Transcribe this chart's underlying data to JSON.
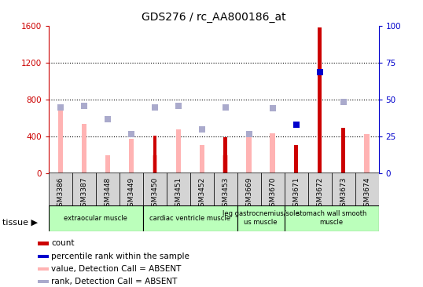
{
  "title": "GDS276 / rc_AA800186_at",
  "samples": [
    "GSM3386",
    "GSM3387",
    "GSM3448",
    "GSM3449",
    "GSM3450",
    "GSM3451",
    "GSM3452",
    "GSM3453",
    "GSM3669",
    "GSM3670",
    "GSM3671",
    "GSM3672",
    "GSM3673",
    "GSM3674"
  ],
  "count_values": [
    0,
    0,
    0,
    0,
    410,
    0,
    0,
    390,
    0,
    0,
    310,
    1580,
    500,
    0
  ],
  "percentile_rank_scaled": [
    0,
    0,
    0,
    0,
    0,
    0,
    0,
    0,
    0,
    0,
    530,
    1100,
    0,
    0
  ],
  "absent_value": [
    680,
    540,
    200,
    380,
    200,
    480,
    310,
    200,
    430,
    440,
    0,
    0,
    0,
    430
  ],
  "absent_rank": [
    720,
    730,
    590,
    430,
    720,
    730,
    480,
    720,
    430,
    710,
    0,
    0,
    780,
    0
  ],
  "count_color": "#cc0000",
  "percentile_color": "#0000cc",
  "absent_value_color": "#ffb3b3",
  "absent_rank_color": "#aaaacc",
  "ylim_left": [
    0,
    1600
  ],
  "ylim_right": [
    0,
    100
  ],
  "yticks_left": [
    0,
    400,
    800,
    1200,
    1600
  ],
  "yticks_right": [
    0,
    25,
    50,
    75,
    100
  ],
  "tissue_groups": [
    {
      "label": "extraocular muscle",
      "start": 0,
      "end": 3
    },
    {
      "label": "cardiac ventricle muscle",
      "start": 4,
      "end": 7
    },
    {
      "label": "leg gastrocnemius/sole\nus muscle",
      "start": 8,
      "end": 9
    },
    {
      "label": "stomach wall smooth\nmuscle",
      "start": 10,
      "end": 13
    }
  ],
  "tissue_color": "#bbffbb",
  "legend_items": [
    {
      "label": "count",
      "color": "#cc0000"
    },
    {
      "label": "percentile rank within the sample",
      "color": "#0000cc"
    },
    {
      "label": "value, Detection Call = ABSENT",
      "color": "#ffb3b3"
    },
    {
      "label": "rank, Detection Call = ABSENT",
      "color": "#aaaacc"
    }
  ],
  "bar_width": 0.25,
  "xtick_bg": "#d4d4d4",
  "grid_color": "black",
  "grid_linestyle": ":"
}
